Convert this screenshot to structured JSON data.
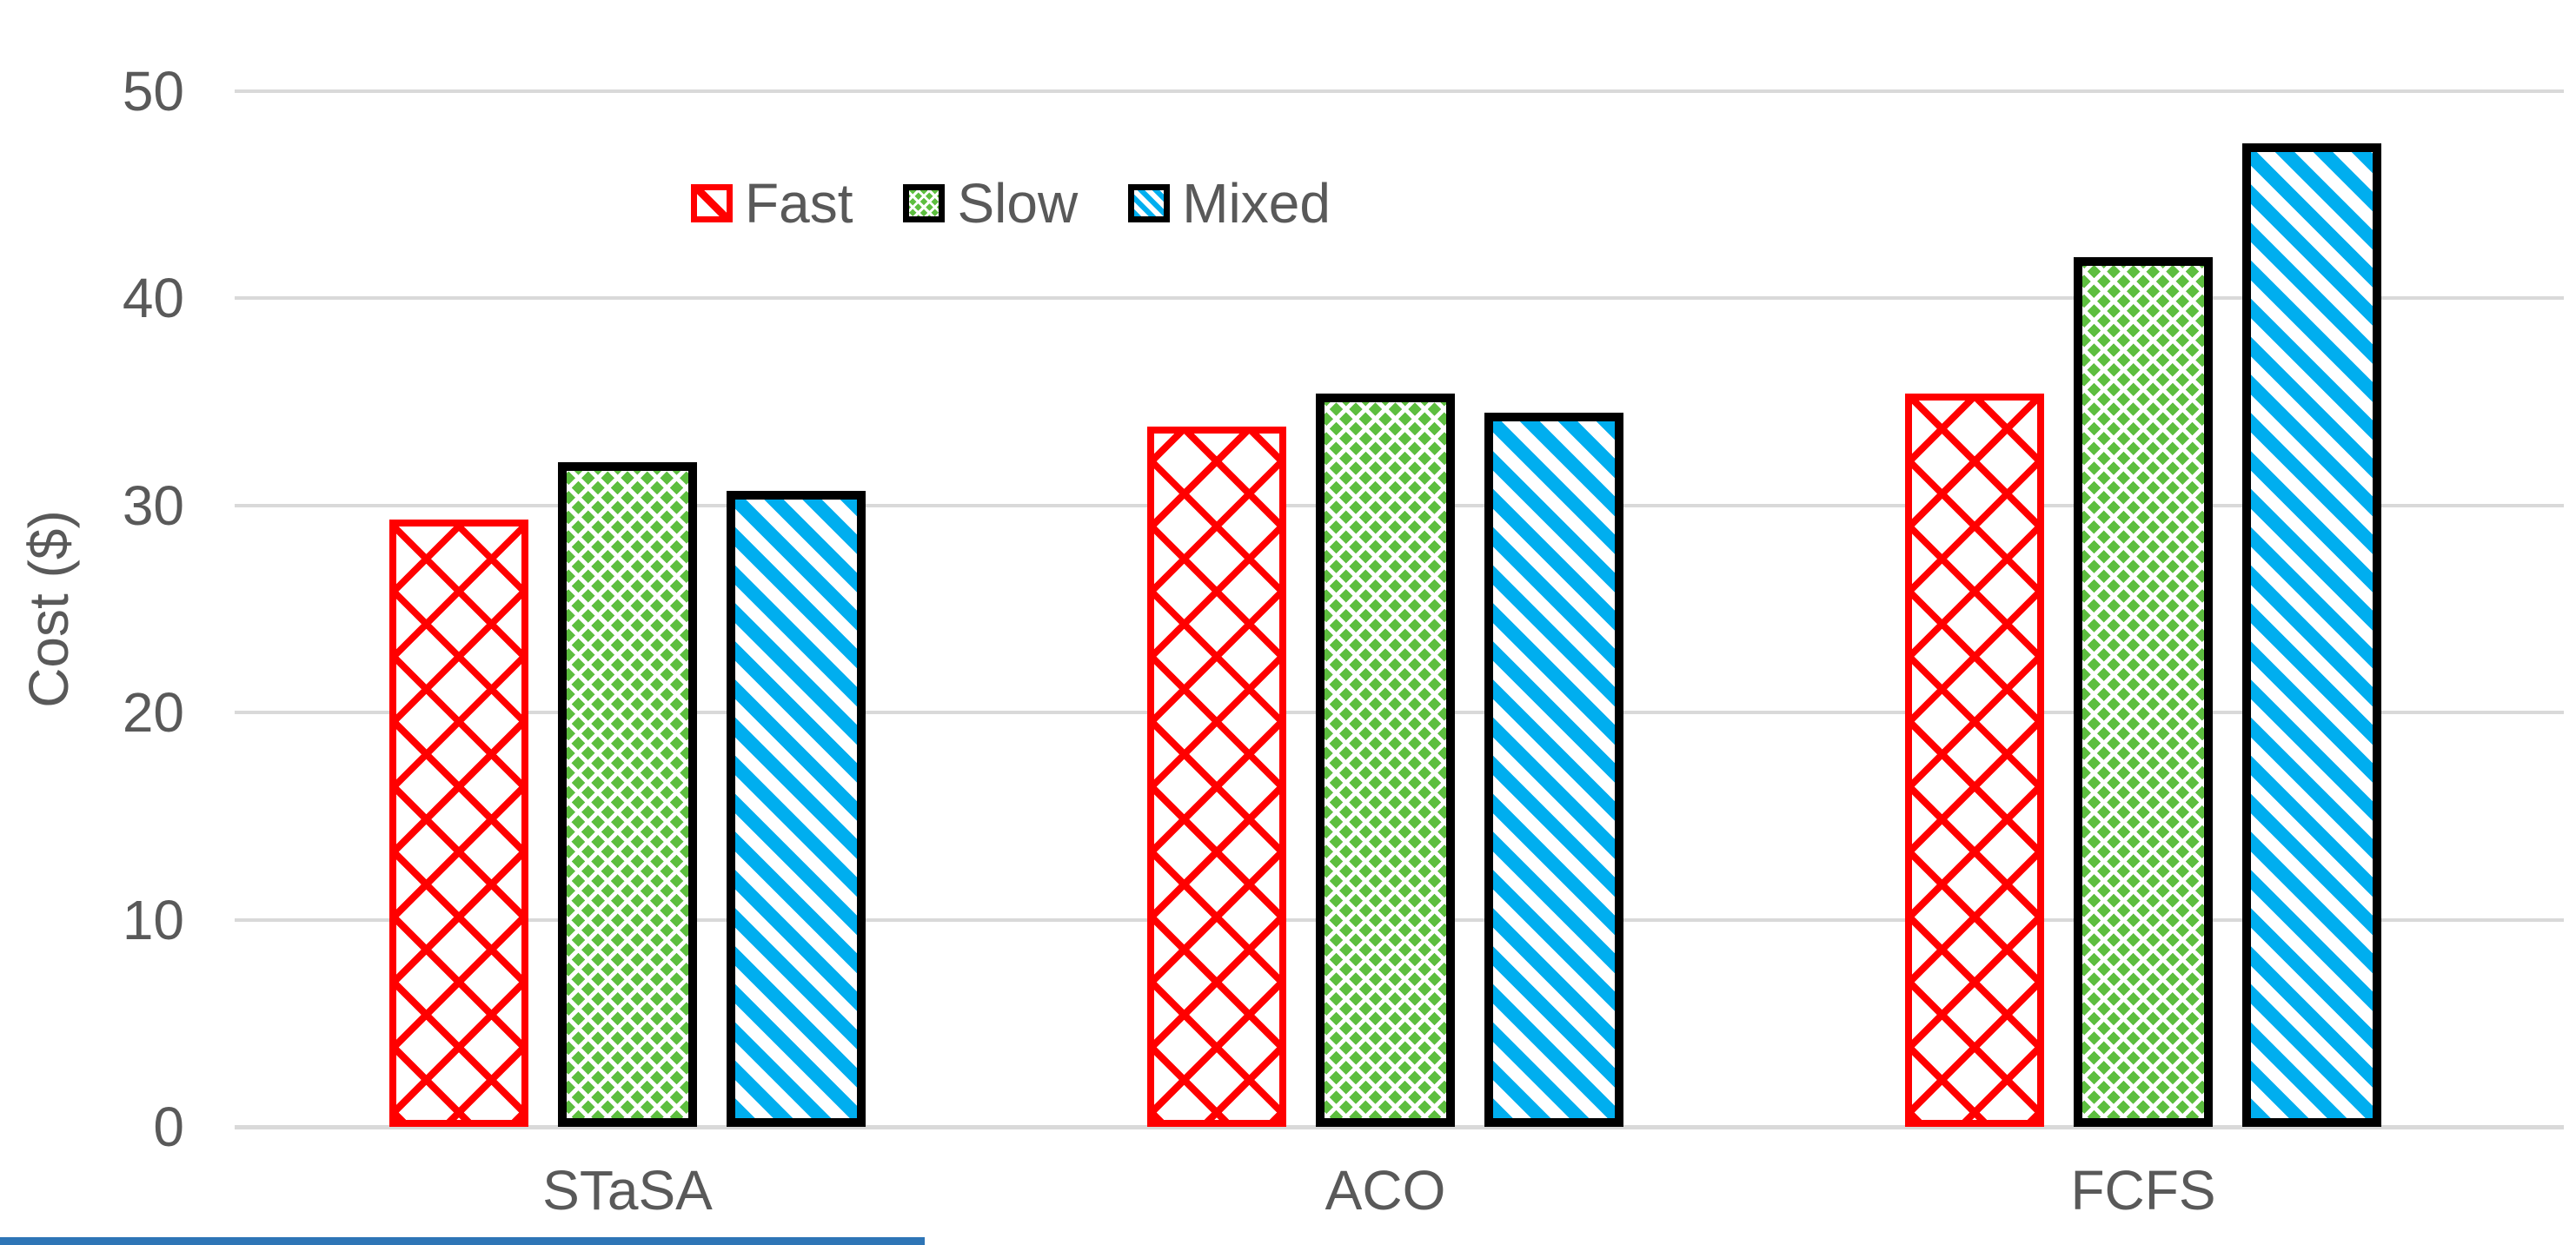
{
  "chart_data": {
    "type": "bar",
    "title": "",
    "categories": [
      "STaSA",
      "ACO",
      "FCFS"
    ],
    "series": [
      {
        "name": "Fast",
        "values": [
          29.3,
          33.8,
          35.4
        ],
        "color": "#ff0000",
        "outline": "#ff0000",
        "pattern": "diagonal-crosshatch"
      },
      {
        "name": "Slow",
        "values": [
          32.1,
          35.4,
          42.0
        ],
        "color": "#5dbe3f",
        "outline": "#000000",
        "pattern": "diamond-checker"
      },
      {
        "name": "Mixed",
        "values": [
          30.7,
          34.5,
          47.5
        ],
        "color": "#00aeef",
        "outline": "#000000",
        "pattern": "diagonal-stripes"
      }
    ],
    "xlabel": "",
    "ylabel": "Cost ($)",
    "ylim": [
      0,
      50
    ],
    "yticks": [
      "0",
      "10",
      "20",
      "30",
      "40",
      "50"
    ],
    "grid": true,
    "legend_position": "top-center"
  },
  "legend": {
    "items": [
      {
        "label": "Fast"
      },
      {
        "label": "Slow"
      },
      {
        "label": "Mixed"
      }
    ]
  },
  "colors": {
    "fast": "#ff0000",
    "slow": "#5dbe3f",
    "mixed": "#00aeef",
    "gridline": "#d9d9d9",
    "text": "#595959",
    "bottom_line": "#2e75b6"
  },
  "decoration": {
    "bottom_line_color": "#2e75b6"
  }
}
